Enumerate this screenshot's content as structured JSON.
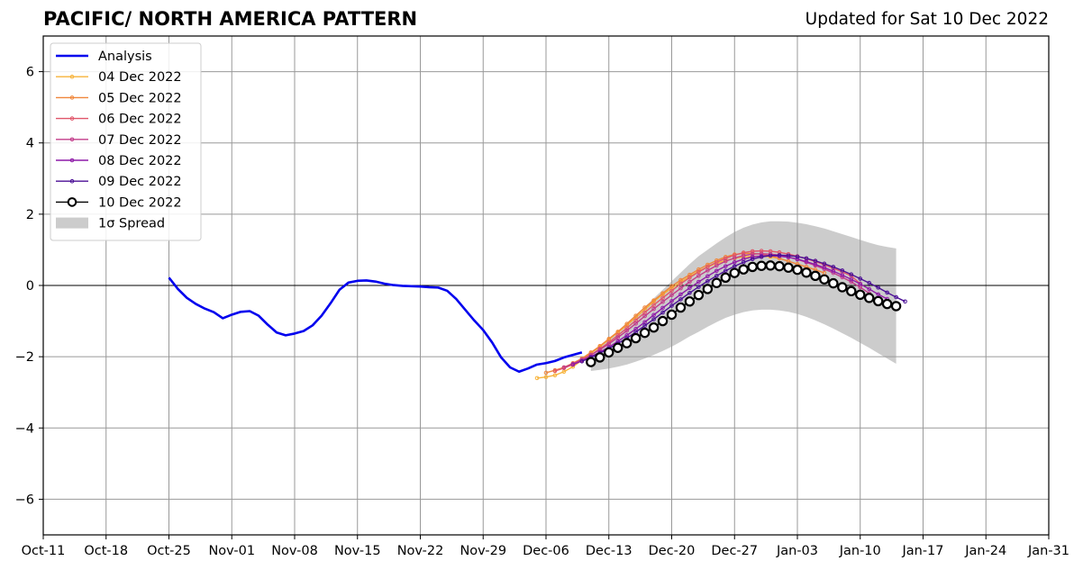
{
  "title": "PACIFIC/ NORTH AMERICA PATTERN",
  "subtitle": "Updated for Sat 10 Dec 2022",
  "chart_data": {
    "type": "line",
    "title": "PACIFIC/ NORTH AMERICA PATTERN",
    "subtitle": "Updated for Sat 10 Dec 2022",
    "x_unit": "date",
    "xlim": [
      "2022-10-11",
      "2023-01-31"
    ],
    "ylim": [
      -7,
      7
    ],
    "xticks": [
      "2022-10-11",
      "2022-10-18",
      "2022-10-25",
      "2022-11-01",
      "2022-11-08",
      "2022-11-15",
      "2022-11-22",
      "2022-11-29",
      "2022-12-06",
      "2022-12-13",
      "2022-12-20",
      "2022-12-27",
      "2023-01-03",
      "2023-01-10",
      "2023-01-17",
      "2023-01-24",
      "2023-01-31"
    ],
    "xtick_labels": [
      "Oct-11",
      "Oct-18",
      "Oct-25",
      "Nov-01",
      "Nov-08",
      "Nov-15",
      "Nov-22",
      "Nov-29",
      "Dec-06",
      "Dec-13",
      "Dec-20",
      "Dec-27",
      "Jan-03",
      "Jan-10",
      "Jan-17",
      "Jan-24",
      "Jan-31"
    ],
    "yticks": [
      -6,
      -4,
      -2,
      0,
      2,
      4,
      6
    ],
    "ytick_labels": [
      "−6",
      "−4",
      "−2",
      "0",
      "2",
      "4",
      "6"
    ],
    "grid": true,
    "zero_line": true,
    "legend_position": "top-left",
    "analysis": {
      "name": "Analysis",
      "color": "#0000ee",
      "x": [
        "2022-10-25",
        "2022-10-26",
        "2022-10-27",
        "2022-10-28",
        "2022-10-29",
        "2022-10-30",
        "2022-10-31",
        "2022-11-01",
        "2022-11-02",
        "2022-11-03",
        "2022-11-04",
        "2022-11-05",
        "2022-11-06",
        "2022-11-07",
        "2022-11-08",
        "2022-11-09",
        "2022-11-10",
        "2022-11-11",
        "2022-11-12",
        "2022-11-13",
        "2022-11-14",
        "2022-11-15",
        "2022-11-16",
        "2022-11-17",
        "2022-11-18",
        "2022-11-19",
        "2022-11-20",
        "2022-11-21",
        "2022-11-22",
        "2022-11-23",
        "2022-11-24",
        "2022-11-25",
        "2022-11-26",
        "2022-11-27",
        "2022-11-28",
        "2022-11-29",
        "2022-11-30",
        "2022-12-01",
        "2022-12-02",
        "2022-12-03",
        "2022-12-04",
        "2022-12-05",
        "2022-12-06",
        "2022-12-07",
        "2022-12-08",
        "2022-12-09",
        "2022-12-10"
      ],
      "y": [
        0.22,
        -0.1,
        -0.35,
        -0.52,
        -0.65,
        -0.75,
        -0.92,
        -0.82,
        -0.74,
        -0.72,
        -0.85,
        -1.1,
        -1.32,
        -1.4,
        -1.35,
        -1.28,
        -1.12,
        -0.85,
        -0.5,
        -0.12,
        0.08,
        0.13,
        0.14,
        0.11,
        0.05,
        0.01,
        -0.01,
        -0.02,
        -0.03,
        -0.05,
        -0.06,
        -0.15,
        -0.38,
        -0.68,
        -0.98,
        -1.25,
        -1.6,
        -2.02,
        -2.3,
        -2.42,
        -2.33,
        -2.22,
        -2.18,
        -2.12,
        -2.02,
        -1.95,
        -1.88
      ]
    },
    "forecasts": [
      {
        "name": "04 Dec 2022",
        "color": "#f7b33a",
        "start": "2022-12-05",
        "y": [
          -2.6,
          -2.57,
          -2.52,
          -2.42,
          -2.28,
          -2.1,
          -1.9,
          -1.72,
          -1.52,
          -1.32,
          -1.12,
          -0.9,
          -0.68,
          -0.45,
          -0.25,
          -0.08,
          0.1,
          0.25,
          0.4,
          0.52,
          0.62,
          0.7,
          0.76,
          0.8,
          0.82,
          0.82,
          0.8,
          0.76
        ]
      },
      {
        "name": "05 Dec 2022",
        "color": "#f0863b",
        "start": "2022-12-06",
        "y": [
          -2.45,
          -2.38,
          -2.3,
          -2.18,
          -2.05,
          -1.88,
          -1.7,
          -1.5,
          -1.3,
          -1.08,
          -0.85,
          -0.62,
          -0.42,
          -0.22,
          -0.02,
          0.15,
          0.3,
          0.45,
          0.58,
          0.7,
          0.8,
          0.87,
          0.9,
          0.9,
          0.88,
          0.83,
          0.76,
          0.68,
          0.6,
          0.52,
          0.44,
          0.35
        ]
      },
      {
        "name": "06 Dec 2022",
        "color": "#e0566a",
        "start": "2022-12-07",
        "y": [
          -2.4,
          -2.32,
          -2.22,
          -2.1,
          -1.95,
          -1.78,
          -1.6,
          -1.4,
          -1.2,
          -0.98,
          -0.76,
          -0.55,
          -0.35,
          -0.15,
          0.05,
          0.22,
          0.38,
          0.52,
          0.65,
          0.76,
          0.85,
          0.92,
          0.96,
          0.97,
          0.96,
          0.93,
          0.88,
          0.82,
          0.75,
          0.67,
          0.58,
          0.48,
          0.38,
          0.27,
          0.05
        ]
      },
      {
        "name": "07 Dec 2022",
        "color": "#c23b8a",
        "start": "2022-12-08",
        "y": [
          -2.3,
          -2.2,
          -2.08,
          -1.95,
          -1.8,
          -1.64,
          -1.46,
          -1.27,
          -1.07,
          -0.86,
          -0.66,
          -0.46,
          -0.27,
          -0.08,
          0.1,
          0.27,
          0.42,
          0.56,
          0.68,
          0.77,
          0.84,
          0.88,
          0.89,
          0.88,
          0.85,
          0.8,
          0.73,
          0.65,
          0.56,
          0.46,
          0.35,
          0.23,
          0.1,
          -0.05,
          -0.22
        ]
      },
      {
        "name": "08 Dec 2022",
        "color": "#8e1aa8",
        "start": "2022-12-09",
        "y": [
          -2.22,
          -2.12,
          -2.0,
          -1.87,
          -1.73,
          -1.57,
          -1.4,
          -1.22,
          -1.03,
          -0.83,
          -0.63,
          -0.44,
          -0.25,
          -0.07,
          0.1,
          0.26,
          0.41,
          0.54,
          0.65,
          0.74,
          0.8,
          0.83,
          0.84,
          0.82,
          0.79,
          0.74,
          0.67,
          0.59,
          0.5,
          0.4,
          0.29,
          0.17,
          0.04,
          -0.1,
          -0.25,
          -0.38
        ]
      },
      {
        "name": "09 Dec 2022",
        "color": "#4b0f96",
        "start": "2022-12-10",
        "y": [
          -2.13,
          -2.02,
          -1.9,
          -1.77,
          -1.63,
          -1.48,
          -1.31,
          -1.13,
          -0.95,
          -0.76,
          -0.57,
          -0.39,
          -0.21,
          -0.04,
          0.12,
          0.27,
          0.41,
          0.54,
          0.65,
          0.74,
          0.8,
          0.84,
          0.85,
          0.84,
          0.81,
          0.76,
          0.69,
          0.61,
          0.52,
          0.42,
          0.31,
          0.19,
          0.07,
          -0.06,
          -0.2,
          -0.33,
          -0.45
        ]
      }
    ],
    "current": {
      "name": "10 Dec 2022",
      "color": "#000000",
      "start": "2022-12-11",
      "y": [
        -2.15,
        -2.02,
        -1.88,
        -1.75,
        -1.62,
        -1.48,
        -1.33,
        -1.18,
        -1.0,
        -0.82,
        -0.62,
        -0.45,
        -0.27,
        -0.1,
        0.07,
        0.22,
        0.35,
        0.45,
        0.52,
        0.55,
        0.56,
        0.54,
        0.5,
        0.44,
        0.36,
        0.27,
        0.17,
        0.06,
        -0.05,
        -0.16,
        -0.26,
        -0.35,
        -0.44,
        -0.52,
        -0.58
      ]
    },
    "spread": {
      "name": "1σ Spread",
      "color": "#cccccc",
      "start": "2022-12-11",
      "upper": [
        -1.95,
        -1.72,
        -1.5,
        -1.28,
        -1.05,
        -0.82,
        -0.6,
        -0.36,
        -0.12,
        0.12,
        0.36,
        0.6,
        0.82,
        1.0,
        1.18,
        1.35,
        1.5,
        1.62,
        1.71,
        1.77,
        1.8,
        1.8,
        1.79,
        1.76,
        1.72,
        1.66,
        1.6,
        1.52,
        1.44,
        1.36,
        1.28,
        1.2,
        1.13,
        1.08,
        1.04
      ],
      "lower": [
        -2.4,
        -2.37,
        -2.33,
        -2.28,
        -2.22,
        -2.14,
        -2.05,
        -1.95,
        -1.84,
        -1.72,
        -1.58,
        -1.43,
        -1.3,
        -1.16,
        -1.03,
        -0.91,
        -0.82,
        -0.75,
        -0.7,
        -0.68,
        -0.68,
        -0.7,
        -0.74,
        -0.8,
        -0.88,
        -0.98,
        -1.09,
        -1.21,
        -1.34,
        -1.47,
        -1.61,
        -1.75,
        -1.9,
        -2.05,
        -2.2
      ]
    }
  }
}
